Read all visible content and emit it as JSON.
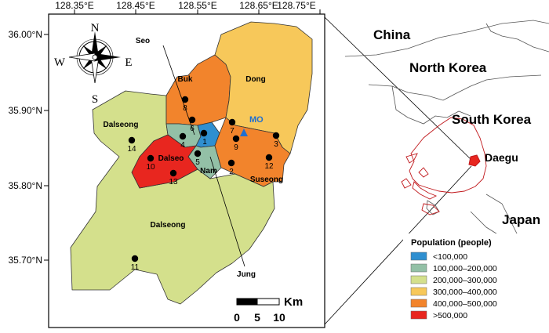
{
  "axes": {
    "lon_ticks": [
      "128.35°E",
      "128.45°E",
      "128.55°E",
      "128.65°E",
      "128.75°E"
    ],
    "lat_ticks": [
      "36.00°N",
      "35.90°N",
      "35.80°N",
      "35.70°N"
    ]
  },
  "compass": {
    "n": "N",
    "s": "S",
    "e": "E",
    "w": "W"
  },
  "districts": [
    {
      "name": "Buk",
      "color": "#f2842c"
    },
    {
      "name": "Dong",
      "color": "#f7c85a"
    },
    {
      "name": "Seo",
      "color": "#93c0a6"
    },
    {
      "name": "Jung",
      "color": "#2f8fd0"
    },
    {
      "name": "Nam",
      "color": "#93c0a6"
    },
    {
      "name": "Suseong",
      "color": "#f2842c"
    },
    {
      "name": "Dalseo",
      "color": "#e8261f"
    },
    {
      "name": "Dalseong",
      "color": "#d4e08c"
    }
  ],
  "district_labels": {
    "buk": "Buk",
    "dong": "Dong",
    "seo": "Seo",
    "dalseong_top": "Dalseong",
    "dalseo": "Dalseo",
    "nam": "Nam",
    "suseong": "Suseong",
    "dalseong_main": "Dalseong",
    "jung": "Jung",
    "mo": "MO"
  },
  "stations": [
    "1",
    "2",
    "3",
    "4",
    "5",
    "6",
    "7",
    "8",
    "9",
    "10",
    "11",
    "12",
    "13",
    "14"
  ],
  "scale_bar": {
    "unit": "Km",
    "labels": [
      "0",
      "5",
      "10"
    ]
  },
  "countries": {
    "china": "China",
    "north_korea": "North Korea",
    "south_korea": "South Korea",
    "daegu": "Daegu",
    "japan": "Japan"
  },
  "legend": {
    "title": "Population (people)",
    "items": [
      {
        "label": "<100,000",
        "color": "#2f8fd0"
      },
      {
        "label": "100,000–200,000",
        "color": "#93c0a6"
      },
      {
        "label": "200,000–300,000",
        "color": "#d4e08c"
      },
      {
        "label": "300,000–400,000",
        "color": "#f7c85a"
      },
      {
        "label": "400,000–500,000",
        "color": "#f2842c"
      },
      {
        "label": ">500,000",
        "color": "#e8261f"
      }
    ]
  }
}
